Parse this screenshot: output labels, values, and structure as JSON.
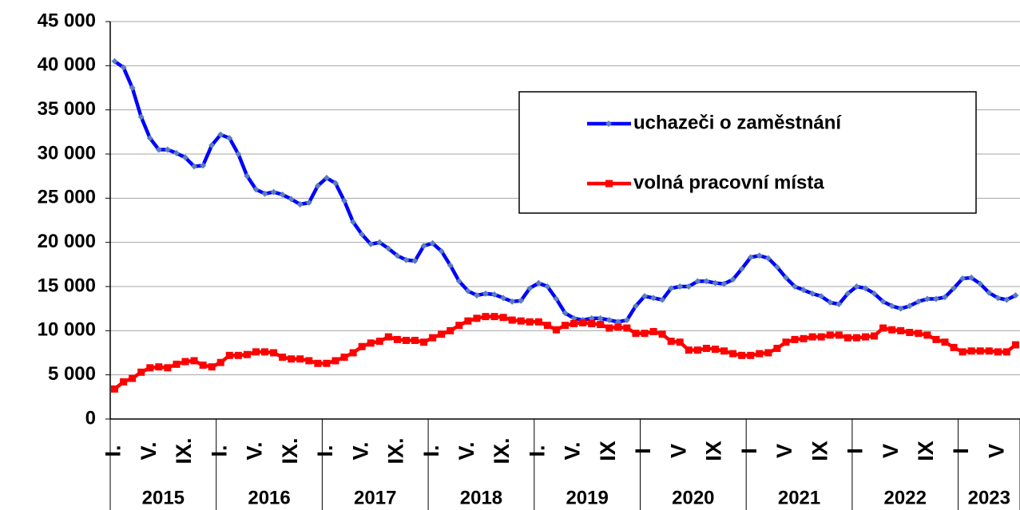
{
  "chart_data": {
    "type": "line",
    "groups": [
      {
        "label": "2015",
        "months": [
          "I.",
          null,
          null,
          null,
          "V.",
          null,
          null,
          null,
          "IX.",
          null,
          null,
          null
        ]
      },
      {
        "label": "2016",
        "months": [
          "I.",
          null,
          null,
          null,
          "V.",
          null,
          null,
          null,
          "IX.",
          null,
          null,
          null
        ]
      },
      {
        "label": "2017",
        "months": [
          "I.",
          null,
          null,
          null,
          "V.",
          null,
          null,
          null,
          "IX.",
          null,
          null,
          null
        ]
      },
      {
        "label": "2018",
        "months": [
          "I.",
          null,
          null,
          null,
          "V.",
          null,
          null,
          null,
          "IX.",
          null,
          null,
          null
        ]
      },
      {
        "label": "2019",
        "months": [
          "I.",
          null,
          null,
          null,
          "V.",
          null,
          null,
          null,
          "IX",
          null,
          null,
          null
        ]
      },
      {
        "label": "2020",
        "months": [
          "I",
          null,
          null,
          null,
          "V",
          null,
          null,
          null,
          "IX",
          null,
          null,
          null
        ]
      },
      {
        "label": "2021",
        "months": [
          "I",
          null,
          null,
          null,
          "V",
          null,
          null,
          null,
          "IX",
          null,
          null,
          null
        ]
      },
      {
        "label": "2022",
        "months": [
          "I",
          null,
          null,
          null,
          "V",
          null,
          null,
          null,
          "IX",
          null,
          null,
          null
        ]
      },
      {
        "label": "2023",
        "months": [
          "I",
          null,
          null,
          null,
          "V",
          null,
          null
        ]
      }
    ],
    "series": [
      {
        "name": "uchazeči o zaměstnání",
        "color": "#0000ff",
        "marker": "diamond",
        "marker_color": "#5b7fbf",
        "values": [
          40500,
          39800,
          37500,
          34200,
          31800,
          30500,
          30500,
          30100,
          29600,
          28600,
          28700,
          31000,
          32200,
          31800,
          30000,
          27500,
          26000,
          25500,
          25700,
          25400,
          24900,
          24300,
          24500,
          26400,
          27300,
          26700,
          24700,
          22300,
          20900,
          19800,
          20000,
          19300,
          18500,
          18000,
          17900,
          19600,
          19900,
          19000,
          17400,
          15600,
          14500,
          14000,
          14200,
          14100,
          13700,
          13300,
          13400,
          14800,
          15400,
          15000,
          13600,
          12000,
          11400,
          11200,
          11400,
          11400,
          11200,
          11000,
          11200,
          12800,
          13900,
          13700,
          13500,
          14800,
          15000,
          15000,
          15600,
          15600,
          15400,
          15300,
          15800,
          17000,
          18300,
          18500,
          18200,
          17200,
          16000,
          15000,
          14600,
          14200,
          13900,
          13200,
          13000,
          14200,
          15000,
          14800,
          14200,
          13300,
          12800,
          12500,
          12800,
          13300,
          13600,
          13600,
          13800,
          14800,
          15900,
          16000,
          15300,
          14300,
          13700,
          13500,
          14000
        ]
      },
      {
        "name": "volná pracovní místa",
        "color": "#ff0000",
        "marker": "square",
        "marker_color": "#ff0000",
        "values": [
          3400,
          4200,
          4600,
          5300,
          5800,
          5900,
          5800,
          6200,
          6500,
          6600,
          6100,
          5900,
          6400,
          7200,
          7200,
          7300,
          7600,
          7600,
          7500,
          7000,
          6800,
          6800,
          6600,
          6300,
          6300,
          6600,
          7000,
          7500,
          8200,
          8600,
          8800,
          9300,
          9000,
          8900,
          8900,
          8700,
          9200,
          9600,
          10000,
          10600,
          11100,
          11400,
          11600,
          11600,
          11500,
          11200,
          11100,
          11000,
          11000,
          10600,
          10100,
          10600,
          10800,
          10900,
          10800,
          10700,
          10300,
          10400,
          10300,
          9700,
          9700,
          9900,
          9600,
          8800,
          8700,
          7800,
          7800,
          8000,
          7900,
          7700,
          7400,
          7200,
          7200,
          7400,
          7500,
          8000,
          8700,
          9000,
          9100,
          9300,
          9300,
          9500,
          9500,
          9200,
          9200,
          9300,
          9400,
          10300,
          10100,
          10000,
          9800,
          9700,
          9500,
          9000,
          8700,
          8100,
          7600,
          7700,
          7700,
          7700,
          7600,
          7600,
          8400
        ]
      }
    ],
    "ylim": [
      0,
      45000
    ],
    "yticks": [
      0,
      {
        "value": 5000,
        "label": "5 000"
      },
      {
        "value": 10000,
        "label": "10 000"
      },
      {
        "value": 15000,
        "label": "15 000"
      },
      {
        "value": 20000,
        "label": "20 000"
      },
      {
        "value": 25000,
        "label": "25 000"
      },
      {
        "value": 30000,
        "label": "30 000"
      },
      {
        "value": 35000,
        "label": "35 000"
      },
      {
        "value": 40000,
        "label": "40 000"
      },
      {
        "value": 45000,
        "label": "45 000"
      }
    ],
    "grid": true
  }
}
